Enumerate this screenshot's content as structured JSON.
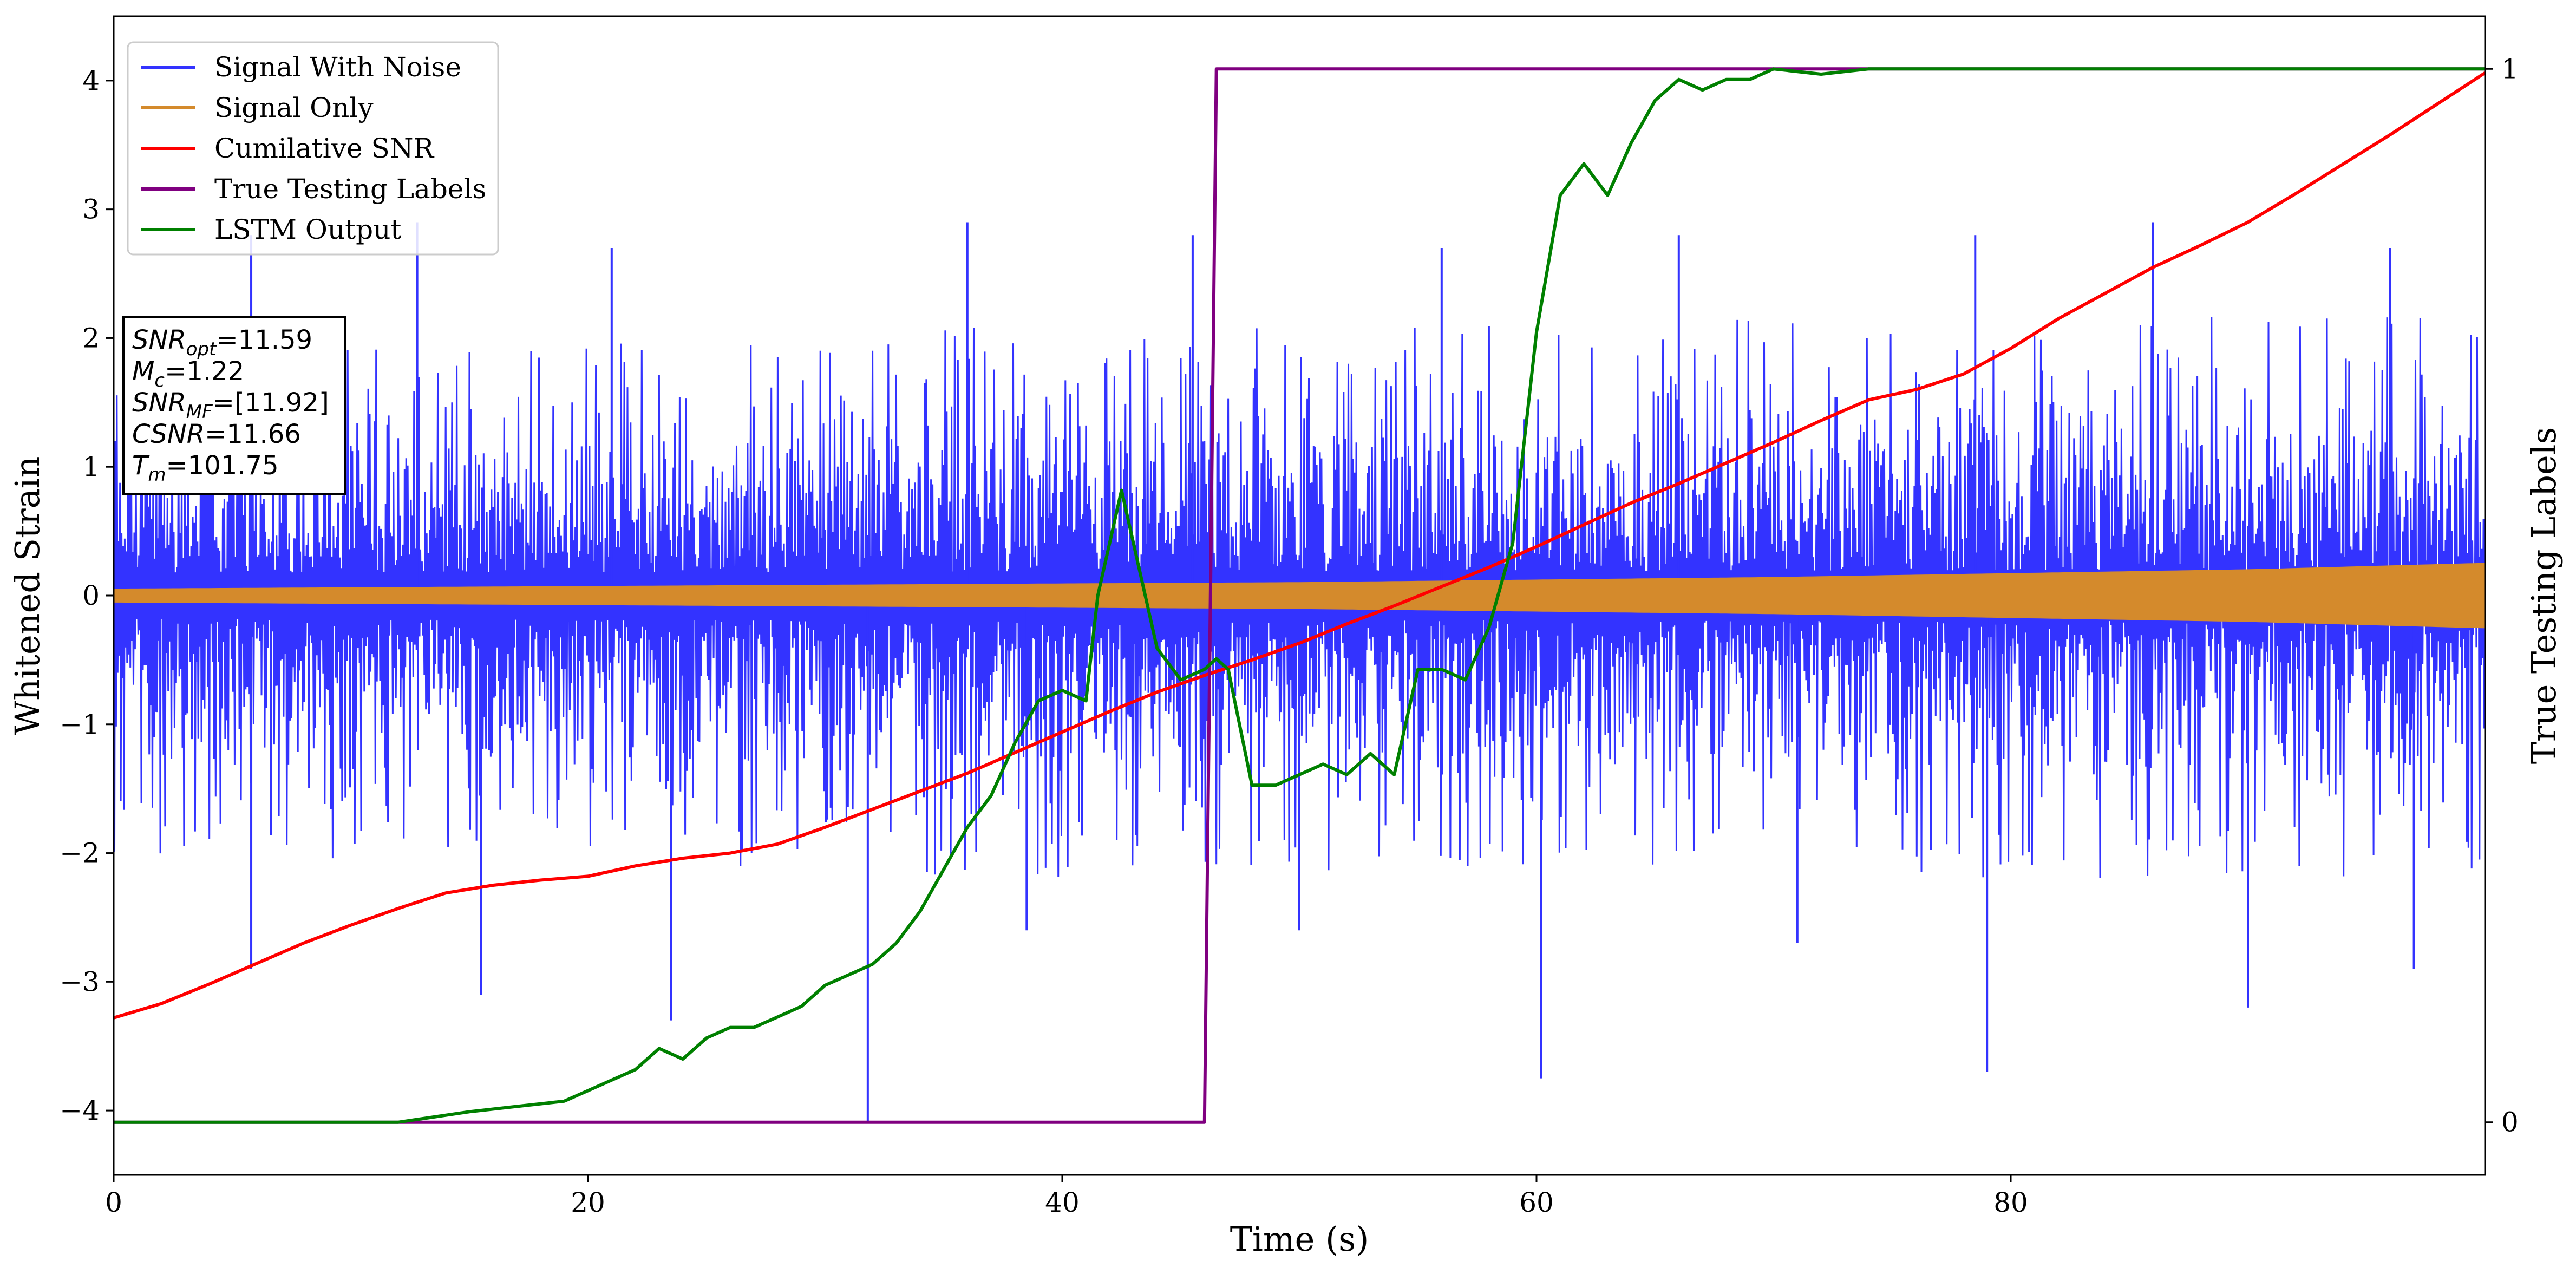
{
  "chart_data": {
    "type": "line",
    "xlabel": "Time (s)",
    "ylabel": "Whitened Strain",
    "y2label": "True Testing Labels",
    "xlim": [
      0,
      100
    ],
    "ylim": [
      -4.5,
      4.5
    ],
    "y2lim": [
      -0.05,
      1.05
    ],
    "xticks": [
      0,
      20,
      40,
      60,
      80
    ],
    "yticks": [
      -4,
      -3,
      -2,
      -1,
      0,
      1,
      2,
      3,
      4
    ],
    "y2ticks": [
      0,
      1
    ],
    "grid": false,
    "legend_position": "top-left",
    "series": [
      {
        "name": "Signal With Noise",
        "axis": "left",
        "color": "#3333ff",
        "style": "dense noise, amplitude about ±2.5 with spikes to about ±3",
        "noise_envelope": {
          "x": [
            0,
            20,
            40,
            60,
            80,
            100
          ],
          "low": [
            -2.0,
            -2.1,
            -2.2,
            -2.1,
            -2.2,
            -2.2
          ],
          "high": [
            2.0,
            2.0,
            2.1,
            2.1,
            2.2,
            2.2
          ]
        },
        "spikes": [
          {
            "x": 5.8,
            "y": 2.8
          },
          {
            "x": 5.8,
            "y": -2.9
          },
          {
            "x": 12.8,
            "y": 2.9
          },
          {
            "x": 15.5,
            "y": -3.1
          },
          {
            "x": 21.0,
            "y": 2.7
          },
          {
            "x": 23.5,
            "y": -3.3
          },
          {
            "x": 31.8,
            "y": -4.1
          },
          {
            "x": 36.0,
            "y": 2.9
          },
          {
            "x": 38.5,
            "y": -2.6
          },
          {
            "x": 45.5,
            "y": 2.8
          },
          {
            "x": 50.0,
            "y": -2.6
          },
          {
            "x": 56.0,
            "y": 2.7
          },
          {
            "x": 60.2,
            "y": -3.75
          },
          {
            "x": 66.0,
            "y": 2.8
          },
          {
            "x": 71.0,
            "y": -2.7
          },
          {
            "x": 78.5,
            "y": 2.8
          },
          {
            "x": 79.0,
            "y": -3.7
          },
          {
            "x": 86.0,
            "y": 2.9
          },
          {
            "x": 90.0,
            "y": -3.2
          },
          {
            "x": 96.0,
            "y": 2.7
          },
          {
            "x": 97.0,
            "y": -2.9
          }
        ]
      },
      {
        "name": "Signal Only",
        "axis": "left",
        "color": "#d48a2c",
        "style": "chirp band around zero",
        "amplitude_envelope": {
          "x": [
            0,
            10,
            20,
            30,
            40,
            50,
            60,
            70,
            80,
            90,
            100
          ],
          "y": [
            0.05,
            0.06,
            0.07,
            0.08,
            0.09,
            0.1,
            0.12,
            0.14,
            0.17,
            0.2,
            0.25
          ]
        }
      },
      {
        "name": "Cumilative SNR",
        "axis": "left",
        "color": "#ff0000",
        "x": [
          0,
          2,
          4,
          6,
          8,
          10,
          12,
          14,
          16,
          18,
          20,
          22,
          24,
          26,
          28,
          30,
          32,
          34,
          36,
          38,
          40,
          42,
          44,
          46,
          48,
          50,
          52,
          54,
          56,
          58,
          60,
          62,
          64,
          66,
          68,
          70,
          72,
          74,
          76,
          78,
          80,
          82,
          84,
          86,
          88,
          90,
          92,
          94,
          96,
          98,
          100
        ],
        "y": [
          -3.28,
          -3.17,
          -3.02,
          -2.86,
          -2.7,
          -2.56,
          -2.43,
          -2.31,
          -2.25,
          -2.21,
          -2.18,
          -2.1,
          -2.04,
          -2.0,
          -1.93,
          -1.8,
          -1.66,
          -1.52,
          -1.38,
          -1.22,
          -1.06,
          -0.9,
          -0.75,
          -0.62,
          -0.5,
          -0.37,
          -0.22,
          -0.08,
          0.07,
          0.22,
          0.38,
          0.55,
          0.72,
          0.87,
          1.03,
          1.19,
          1.36,
          1.52,
          1.6,
          1.72,
          1.92,
          2.15,
          2.35,
          2.55,
          2.72,
          2.9,
          3.12,
          3.35,
          3.58,
          3.82,
          4.06
        ]
      },
      {
        "name": "True Testing Labels",
        "axis": "right",
        "color": "#800080",
        "x": [
          0,
          46.0,
          46.5,
          100
        ],
        "y": [
          0,
          0,
          1,
          1
        ]
      },
      {
        "name": "LSTM Output",
        "axis": "right",
        "color": "#008000",
        "x": [
          0,
          12,
          15,
          17,
          19,
          20,
          21,
          22,
          23,
          24,
          25,
          26,
          27,
          28,
          29,
          30,
          31,
          32,
          33,
          34,
          35,
          36,
          37,
          38,
          39,
          40,
          41,
          41.5,
          42,
          42.5,
          43,
          43.5,
          44,
          45,
          46,
          46.5,
          47,
          48,
          49,
          50,
          51,
          52,
          53,
          54,
          55,
          56,
          57,
          58,
          59,
          60,
          61,
          62,
          63,
          64,
          65,
          66,
          67,
          68,
          69,
          70,
          72,
          74,
          76,
          78,
          80,
          85,
          90,
          95,
          100
        ],
        "y": [
          0,
          0,
          0.01,
          0.015,
          0.02,
          0.03,
          0.04,
          0.05,
          0.07,
          0.06,
          0.08,
          0.09,
          0.09,
          0.1,
          0.11,
          0.13,
          0.14,
          0.15,
          0.17,
          0.2,
          0.24,
          0.28,
          0.31,
          0.36,
          0.4,
          0.41,
          0.4,
          0.5,
          0.55,
          0.6,
          0.55,
          0.5,
          0.45,
          0.42,
          0.43,
          0.44,
          0.43,
          0.32,
          0.32,
          0.33,
          0.34,
          0.33,
          0.35,
          0.33,
          0.43,
          0.43,
          0.42,
          0.47,
          0.55,
          0.75,
          0.88,
          0.91,
          0.88,
          0.93,
          0.97,
          0.99,
          0.98,
          0.99,
          0.99,
          1.0,
          0.995,
          1.0,
          1.0,
          1.0,
          1.0,
          1.0,
          1.0,
          1.0,
          1.0
        ]
      }
    ],
    "annotation_box": {
      "location": "upper-left",
      "lines": [
        {
          "base": "SNR",
          "sub": "opt",
          "value": "=11.59"
        },
        {
          "base": "M",
          "sub": "c",
          "value": "=1.22"
        },
        {
          "base": "SNR",
          "sub": "MF",
          "value": "=[11.92]"
        },
        {
          "base": "CSNR",
          "sub": "",
          "value": "=11.66"
        },
        {
          "base": "T",
          "sub": "m",
          "value": "=101.75"
        }
      ]
    }
  }
}
